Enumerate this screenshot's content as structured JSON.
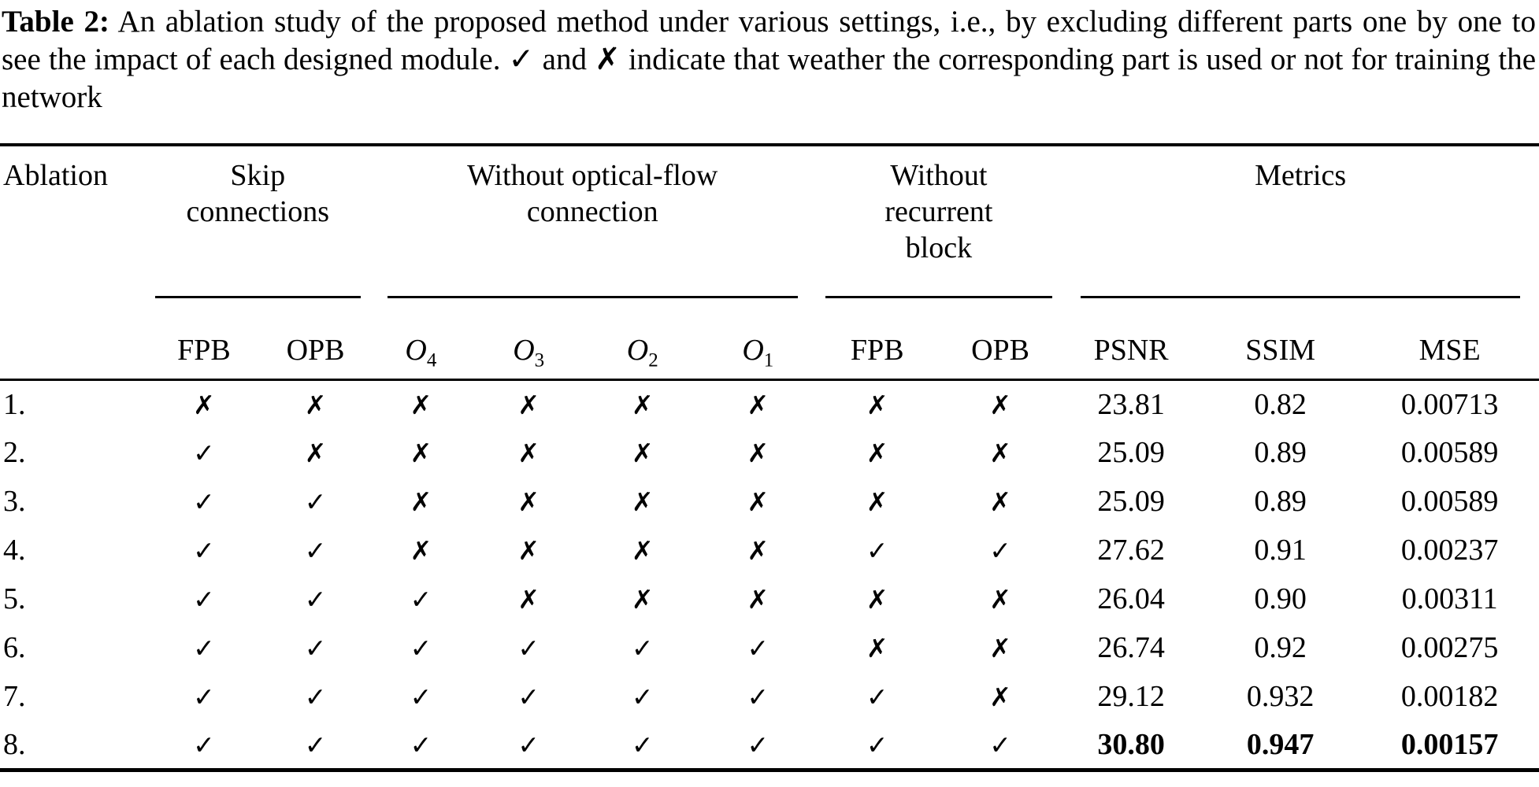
{
  "caption": {
    "label": "Table 2:",
    "body": " An ablation study of the proposed method under various settings, i.e., by excluding different parts one by one to see the impact of each designed module. ✓ and ✗ indicate that weather the corresponding part is used or not for training the network"
  },
  "table": {
    "corner_header": "Ablation",
    "groups": [
      {
        "label": "Skip connections",
        "span": 2
      },
      {
        "label": "Without optical-flow connection",
        "span": 4
      },
      {
        "label": "Without recurrent block",
        "span": 2
      },
      {
        "label": "Metrics",
        "span": 3
      }
    ],
    "sub_columns": [
      {
        "text": "FPB"
      },
      {
        "text": "OPB"
      },
      {
        "base": "O",
        "sub": "4"
      },
      {
        "base": "O",
        "sub": "3"
      },
      {
        "base": "O",
        "sub": "2"
      },
      {
        "base": "O",
        "sub": "1"
      },
      {
        "text": "FPB"
      },
      {
        "text": "OPB"
      },
      {
        "text": "PSNR"
      },
      {
        "text": "SSIM"
      },
      {
        "text": "MSE"
      }
    ],
    "symbols": {
      "check": "✓",
      "cross": "✗"
    },
    "rows": [
      {
        "label": "1.",
        "flags": [
          "cross",
          "cross",
          "cross",
          "cross",
          "cross",
          "cross",
          "cross",
          "cross"
        ],
        "metrics": [
          "23.81",
          "0.82",
          "0.00713"
        ],
        "bold_metrics": false
      },
      {
        "label": "2.",
        "flags": [
          "check",
          "cross",
          "cross",
          "cross",
          "cross",
          "cross",
          "cross",
          "cross"
        ],
        "metrics": [
          "25.09",
          "0.89",
          "0.00589"
        ],
        "bold_metrics": false
      },
      {
        "label": "3.",
        "flags": [
          "check",
          "check",
          "cross",
          "cross",
          "cross",
          "cross",
          "cross",
          "cross"
        ],
        "metrics": [
          "25.09",
          "0.89",
          "0.00589"
        ],
        "bold_metrics": false
      },
      {
        "label": "4.",
        "flags": [
          "check",
          "check",
          "cross",
          "cross",
          "cross",
          "cross",
          "check",
          "check"
        ],
        "metrics": [
          "27.62",
          "0.91",
          "0.00237"
        ],
        "bold_metrics": false
      },
      {
        "label": "5.",
        "flags": [
          "check",
          "check",
          "check",
          "cross",
          "cross",
          "cross",
          "cross",
          "cross"
        ],
        "metrics": [
          "26.04",
          "0.90",
          "0.00311"
        ],
        "bold_metrics": false
      },
      {
        "label": "6.",
        "flags": [
          "check",
          "check",
          "check",
          "check",
          "check",
          "check",
          "cross",
          "cross"
        ],
        "metrics": [
          "26.74",
          "0.92",
          "0.00275"
        ],
        "bold_metrics": false
      },
      {
        "label": "7.",
        "flags": [
          "check",
          "check",
          "check",
          "check",
          "check",
          "check",
          "check",
          "cross"
        ],
        "metrics": [
          "29.12",
          "0.932",
          "0.00182"
        ],
        "bold_metrics": false
      },
      {
        "label": "8.",
        "flags": [
          "check",
          "check",
          "check",
          "check",
          "check",
          "check",
          "check",
          "check"
        ],
        "metrics": [
          "30.80",
          "0.947",
          "0.00157"
        ],
        "bold_metrics": true
      }
    ]
  }
}
